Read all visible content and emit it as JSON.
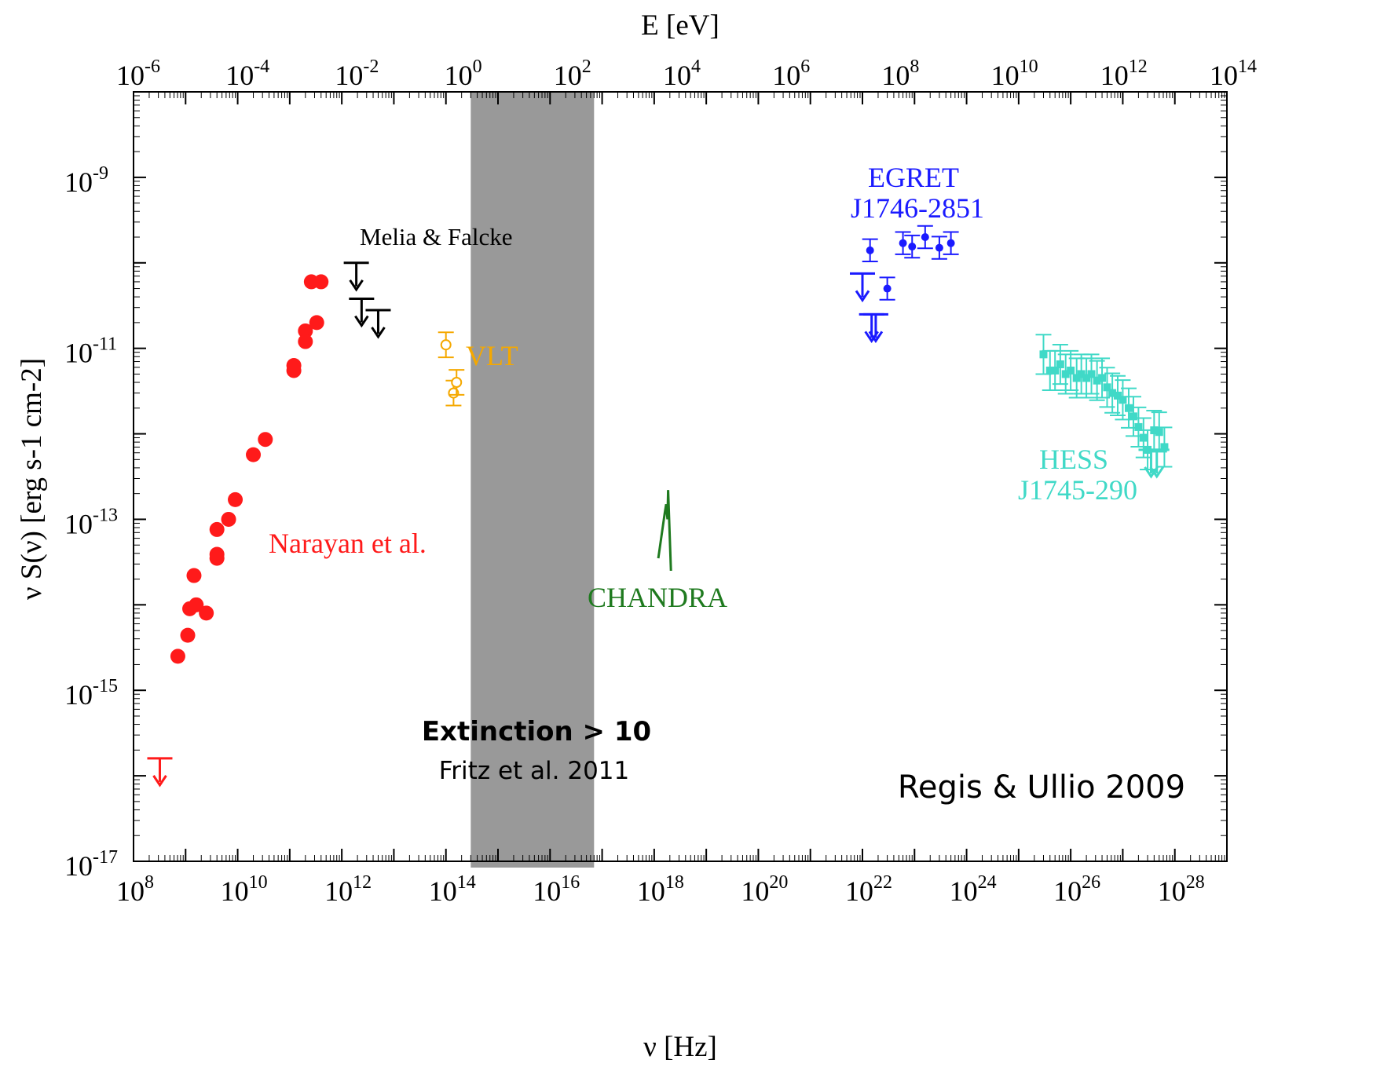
{
  "chart_data": {
    "type": "scatter",
    "x_axis_label": "ν [Hz]",
    "y_axis_label": "ν S(ν) [erg s-1 cm-2]",
    "top_axis_label": "E [eV]",
    "x_scale": "log",
    "y_scale": "log",
    "top_scale": "log",
    "xlim": [
      100000000.0,
      1e+29
    ],
    "ylim": [
      1e-17,
      1e-08
    ],
    "toplim": [
      1e-06,
      100000000000000.0
    ],
    "x_tick_exponents": [
      8,
      10,
      12,
      14,
      16,
      18,
      20,
      22,
      24,
      26,
      28
    ],
    "y_tick_exponents": [
      -17,
      -15,
      -13,
      -11,
      -9
    ],
    "top_tick_exponents": [
      -6,
      -4,
      -2,
      0,
      2,
      4,
      6,
      8,
      10,
      12,
      14
    ],
    "shaded_band": {
      "x_range": [
        300000000000000.0,
        7e+16
      ],
      "label": "Extinction > 10",
      "sublabel": "Fritz et al. 2011",
      "color": "#999999"
    },
    "credit": "Regis & Ullio 2009",
    "series": [
      {
        "name": "Narayan et al.",
        "color": "#ff1a1a",
        "marker": "filled-circle",
        "points": [
          [
            710000000.0,
            2.5e-15
          ],
          [
            1100000000.0,
            4.4e-15
          ],
          [
            1200000000.0,
            9e-15
          ],
          [
            1450000000.0,
            2.2e-14
          ],
          [
            1600000000.0,
            1e-14
          ],
          [
            2500000000.0,
            8e-15
          ],
          [
            4000000000.0,
            7.6e-14
          ],
          [
            4000000000.0,
            3.9e-14
          ],
          [
            4000000000.0,
            3.5e-14
          ],
          [
            6700000000.0,
            1e-13
          ],
          [
            9000000000.0,
            1.7e-13
          ],
          [
            20000000000.0,
            5.7e-13
          ],
          [
            34000000000.0,
            8.6e-13
          ],
          [
            120000000000.0,
            5.5e-12
          ],
          [
            120000000000.0,
            6.3e-12
          ],
          [
            200000000000.0,
            1.6e-11
          ],
          [
            200000000000.0,
            1.2e-11
          ],
          [
            260000000000.0,
            6e-11
          ],
          [
            330000000000.0,
            2e-11
          ],
          [
            400000000000.0,
            6e-11
          ]
        ],
        "upper_limits": [
          [
            320000000.0,
            1.6e-16
          ]
        ]
      },
      {
        "name": "Melia & Falcke",
        "color": "#000000",
        "marker": "upper-limit",
        "points": [],
        "upper_limits": [
          [
            1900000000000.0,
            1e-10
          ],
          [
            2400000000000.0,
            3.8e-11
          ],
          [
            5000000000000.0,
            2.8e-11
          ]
        ]
      },
      {
        "name": "VLT",
        "color": "#f5a800",
        "marker": "open-circle",
        "points": [
          [
            100000000000000.0,
            1.1e-11
          ],
          [
            140000000000000.0,
            3e-12
          ],
          [
            160000000000000.0,
            4e-12
          ]
        ],
        "error_factor": 1.4
      },
      {
        "name": "CHANDRA",
        "color": "#1f7a1f",
        "marker": "line",
        "points": [
          [
            1.2e+18,
            3.5e-14
          ],
          [
            1.6e+18,
            1.2e-13
          ],
          [
            1.7e+18,
            1.5e-13
          ],
          [
            1.8e+18,
            1e-13
          ],
          [
            1.85e+18,
            2.2e-13
          ],
          [
            2.1e+18,
            2.5e-14
          ]
        ]
      },
      {
        "name": "EGRET",
        "sublabel": "J1746-2851",
        "color": "#1a1aff",
        "marker": "filled-circle",
        "points": [
          [
            1.4e+22,
            1.4e-10
          ],
          [
            3e+22,
            5e-11
          ],
          [
            6e+22,
            1.7e-10
          ],
          [
            9e+22,
            1.55e-10
          ],
          [
            1.6e+23,
            2e-10
          ],
          [
            3e+23,
            1.5e-10
          ],
          [
            5e+23,
            1.7e-10
          ]
        ],
        "error_factor": 1.35,
        "upper_limits": [
          [
            1e+22,
            7.5e-11
          ],
          [
            1.5e+22,
            2.5e-11
          ],
          [
            1.8e+22,
            2.5e-11
          ]
        ]
      },
      {
        "name": "HESS",
        "sublabel": "J1745-290",
        "color": "#40d9c7",
        "marker": "filled-square",
        "points": [
          [
            3e+25,
            8.5e-12
          ],
          [
            4e+25,
            5.5e-12
          ],
          [
            5e+25,
            5.5e-12
          ],
          [
            6.3e+25,
            6.5e-12
          ],
          [
            8e+25,
            5e-12
          ],
          [
            1e+26,
            5.5e-12
          ],
          [
            1.3e+26,
            4.5e-12
          ],
          [
            1.6e+26,
            5e-12
          ],
          [
            2e+26,
            4.5e-12
          ],
          [
            2.5e+26,
            5e-12
          ],
          [
            3.2e+26,
            4.2e-12
          ],
          [
            4e+26,
            4.5e-12
          ],
          [
            5e+26,
            3.5e-12
          ],
          [
            6.3e+26,
            3e-12
          ],
          [
            8e+26,
            2.8e-12
          ],
          [
            1e+27,
            2.5e-12
          ],
          [
            1.3e+27,
            2e-12
          ],
          [
            1.6e+27,
            1.6e-12
          ],
          [
            2e+27,
            1.2e-12
          ],
          [
            2.5e+27,
            9e-13
          ],
          [
            3e+27,
            6.5e-13
          ],
          [
            4e+27,
            1.1e-12
          ],
          [
            5e+27,
            1.05e-12
          ],
          [
            6.3e+27,
            7e-13
          ]
        ],
        "error_factor": 1.7,
        "upper_limits": [
          [
            3.5e+27,
            6.5e-13
          ],
          [
            4.5e+27,
            6.5e-13
          ]
        ]
      }
    ]
  }
}
